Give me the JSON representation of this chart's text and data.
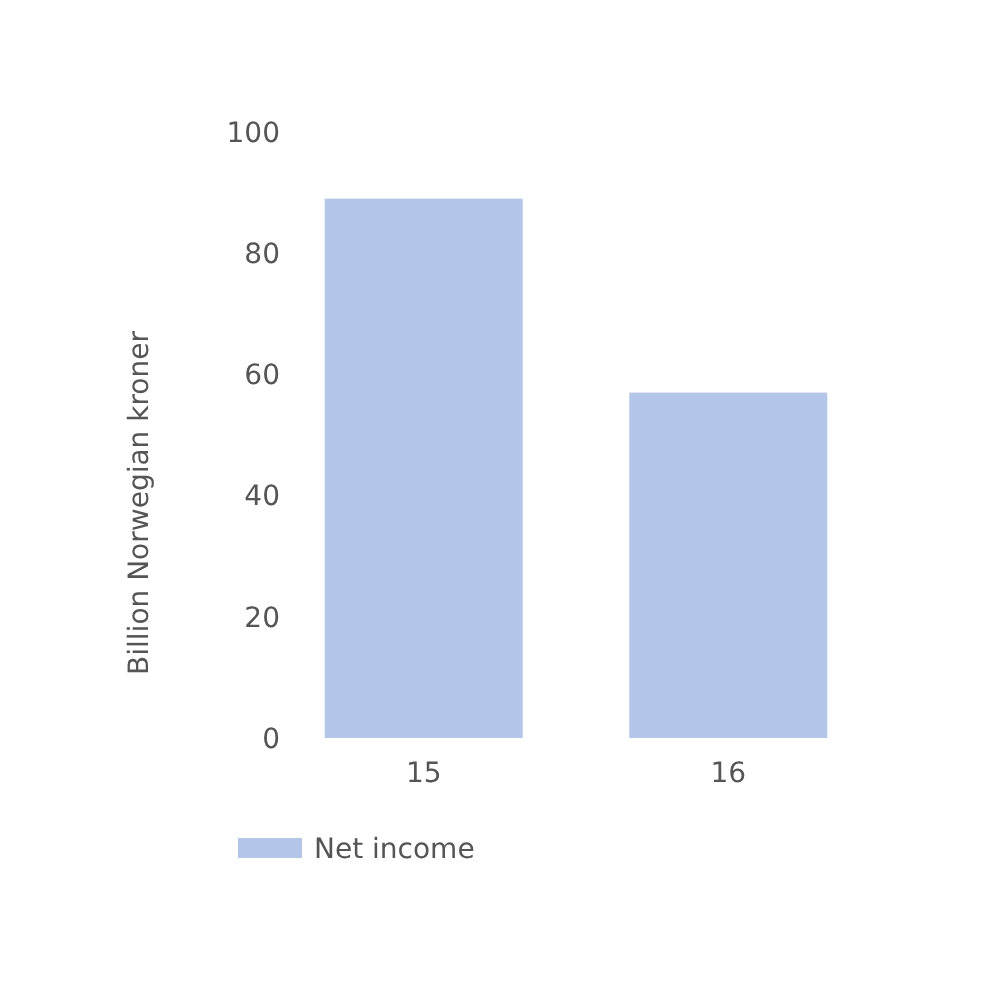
{
  "chart_data": {
    "type": "bar",
    "ylabel": "Billion Norwegian kroner",
    "categories": [
      "15",
      "16"
    ],
    "series": [
      {
        "name": "Net income",
        "color": "#b4c6e7",
        "values": [
          89,
          57
        ]
      }
    ],
    "ylim": [
      0,
      100
    ],
    "yticks": [
      0,
      20,
      40,
      60,
      80,
      100
    ],
    "grid": false,
    "legend": "bottom left"
  }
}
